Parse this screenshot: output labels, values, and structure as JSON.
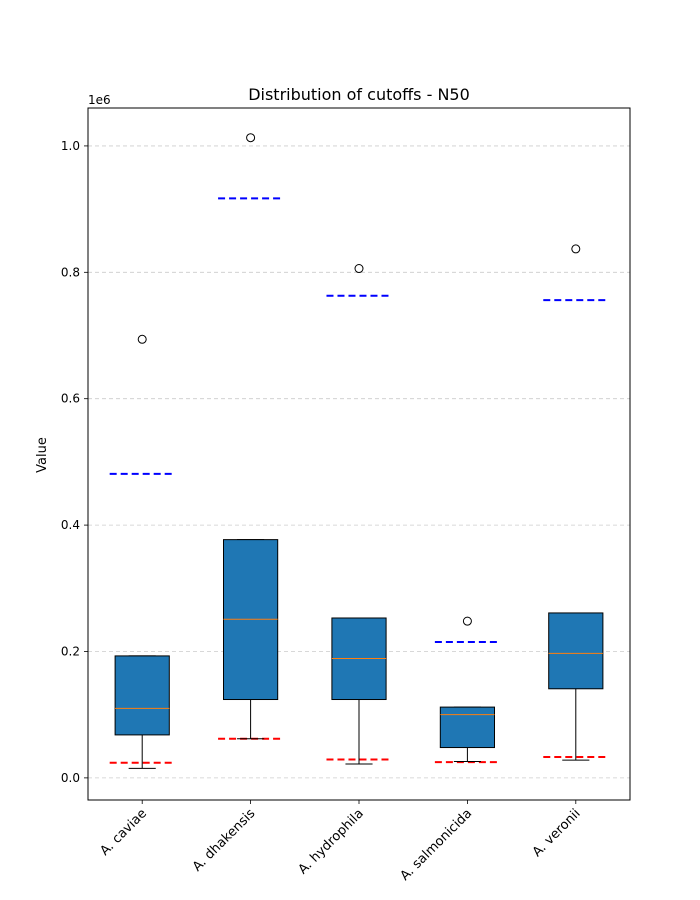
{
  "chart_data": {
    "type": "box",
    "title": "Distribution of cutoffs - N50",
    "xlabel": "",
    "ylabel": "Value",
    "y_scale_note": "1e6",
    "ylim": [
      -35000,
      1060000
    ],
    "yticks": [
      0.0,
      200000,
      400000,
      600000,
      800000,
      1000000
    ],
    "ytick_labels": [
      "0.0",
      "0.2",
      "0.4",
      "0.6",
      "0.8",
      "1.0"
    ],
    "grid": "y-dashed",
    "categories": [
      "A. caviae",
      "A. dhakensis",
      "A. hydrophila",
      "A. salmonicida",
      "A. veronii"
    ],
    "boxes": [
      {
        "whisker_low": 15000,
        "q1": 68000,
        "median": 110000,
        "q3": 193000,
        "whisker_high": 193000,
        "outliers": [
          694000
        ]
      },
      {
        "whisker_low": 62000,
        "q1": 124000,
        "median": 251000,
        "q3": 377000,
        "whisker_high": 377000,
        "outliers": [
          1013000
        ]
      },
      {
        "whisker_low": 22000,
        "q1": 124000,
        "median": 189000,
        "q3": 253000,
        "whisker_high": 253000,
        "outliers": [
          806000
        ]
      },
      {
        "whisker_low": 26000,
        "q1": 48000,
        "median": 100000,
        "q3": 112000,
        "whisker_high": 112000,
        "outliers": [
          248000
        ]
      },
      {
        "whisker_low": 28000,
        "q1": 141000,
        "median": 197000,
        "q3": 261000,
        "whisker_high": 261000,
        "outliers": [
          837000
        ]
      }
    ],
    "upper_cutoffs": [
      481000,
      917000,
      763000,
      215000,
      756000
    ],
    "lower_cutoffs": [
      24000,
      62000,
      29000,
      25000,
      33000
    ],
    "colors": {
      "box_fill": "#1f77b4",
      "median": "#ff7f0e",
      "upper_cutoff": "#0000ff",
      "lower_cutoff": "#ff0000",
      "grid": "#cccccc"
    }
  }
}
